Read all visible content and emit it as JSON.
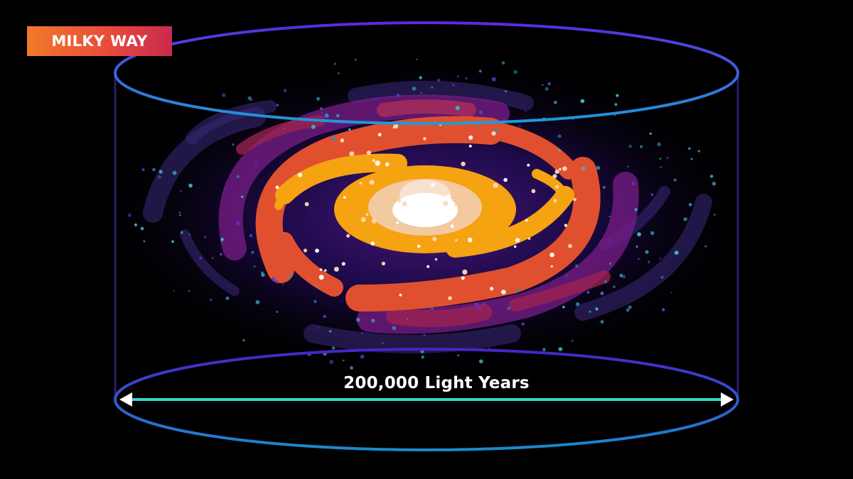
{
  "badge": {
    "label": "MILKY WAY"
  },
  "measurement": {
    "label": "200,000 Light Years"
  },
  "colors": {
    "background": "#000000",
    "cylinder_edge": "#4b2bd8",
    "measure_line": "#34d6c9",
    "core": "#ffffff",
    "inner_arm": "#f5a311",
    "outer_arm": "#e0502f",
    "halo": "#7a1d8a"
  }
}
